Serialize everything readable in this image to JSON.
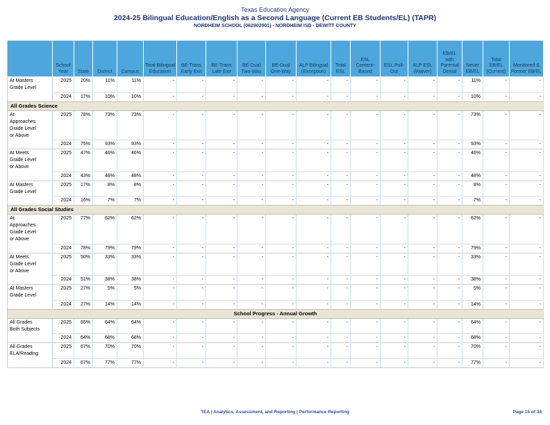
{
  "page": {
    "title": "Texas Education Agency",
    "subtitle": "2024-25 Bilingual Education/English as a Second Language (Current EB Students/EL) (TAPR)",
    "campus_line": "NORDHEIM SCHOOL (062902001) - NORDHEIM ISD - DEWITT COUNTY",
    "footer_left": "TEA | Analytics, Assessment, and Reporting | Performance Reporting",
    "footer_right": "Page 15 of 34"
  },
  "colors": {
    "header_bg": "#4da7dc",
    "header_text": "#15365f",
    "section_bg": "#e8e4d6",
    "title_text": "#1f3470",
    "footer_text": "#2b4aa5"
  },
  "table": {
    "columns": [
      "",
      "School Year",
      "State",
      "District",
      "Campus",
      "Total Bilingual Education",
      "BE-Trans Early Exit",
      "BE-Trans Late Exit",
      "BE-Dual Two-Way",
      "BE-Dual One-Way",
      "ALP Bilingual (Exception)",
      "Total ESL",
      "ESL Content-Based",
      "ESL Pull-Out",
      "ALP ESL (Waiver)",
      "EB/EL with Parental Denial",
      "Never EB/EL",
      "Total EB/EL (Current)",
      "Monitored & Former EB/EL"
    ],
    "sections": [
      {
        "header": null,
        "align": null,
        "groups": [
          {
            "label": "At Masters Grade Level",
            "rows": [
              [
                "2025",
                "20%",
                "11%",
                "11%",
                "-",
                "-",
                "-",
                "-",
                "-",
                "-",
                "-",
                "-",
                "-",
                "-",
                "-",
                "11%",
                "-",
                "-"
              ],
              [
                "2024",
                "17%",
                "10%",
                "10%",
                "-",
                "-",
                "-",
                "-",
                "-",
                "-",
                "-",
                "-",
                "-",
                "-",
                "-",
                "10%",
                "-",
                "-"
              ]
            ]
          }
        ]
      },
      {
        "header": "All Grades Science",
        "align": "left",
        "groups": [
          {
            "label": "At Approaches Grade Level or Above",
            "rows": [
              [
                "2025",
                "78%",
                "73%",
                "73%",
                "-",
                "-",
                "-",
                "-",
                "-",
                "-",
                "-",
                "-",
                "-",
                "-",
                "-",
                "73%",
                "-",
                "-"
              ],
              [
                "2024",
                "75%",
                "93%",
                "93%",
                "-",
                "-",
                "-",
                "-",
                "-",
                "-",
                "-",
                "-",
                "-",
                "-",
                "-",
                "93%",
                "-",
                "-"
              ]
            ]
          },
          {
            "label": "At Meets Grade Level or Above",
            "rows": [
              [
                "2025",
                "47%",
                "46%",
                "46%",
                "-",
                "-",
                "-",
                "-",
                "-",
                "-",
                "-",
                "-",
                "-",
                "-",
                "-",
                "46%",
                "-",
                "-"
              ],
              [
                "2024",
                "43%",
                "48%",
                "48%",
                "-",
                "-",
                "-",
                "-",
                "-",
                "-",
                "-",
                "-",
                "-",
                "-",
                "-",
                "48%",
                "-",
                "-"
              ]
            ]
          },
          {
            "label": "At Masters Grade Level",
            "rows": [
              [
                "2025",
                "17%",
                "8%",
                "8%",
                "-",
                "-",
                "-",
                "-",
                "-",
                "-",
                "-",
                "-",
                "-",
                "-",
                "-",
                "8%",
                "-",
                "-"
              ],
              [
                "2024",
                "16%",
                "7%",
                "7%",
                "-",
                "-",
                "-",
                "-",
                "-",
                "-",
                "-",
                "-",
                "-",
                "-",
                "-",
                "7%",
                "-",
                "-"
              ]
            ]
          }
        ]
      },
      {
        "header": "All Grades Social Studies",
        "align": "left",
        "groups": [
          {
            "label": "At Approaches Grade Level or Above",
            "rows": [
              [
                "2025",
                "77%",
                "62%",
                "62%",
                "-",
                "-",
                "-",
                "-",
                "-",
                "-",
                "-",
                "-",
                "-",
                "-",
                "-",
                "62%",
                "-",
                "-"
              ],
              [
                "2024",
                "78%",
                "79%",
                "79%",
                "-",
                "-",
                "-",
                "-",
                "-",
                "-",
                "-",
                "-",
                "-",
                "-",
                "-",
                "79%",
                "-",
                "-"
              ]
            ]
          },
          {
            "label": "At Meets Grade Level or Above",
            "rows": [
              [
                "2025",
                "50%",
                "33%",
                "33%",
                "-",
                "-",
                "-",
                "-",
                "-",
                "-",
                "-",
                "-",
                "-",
                "-",
                "-",
                "33%",
                "-",
                "-"
              ],
              [
                "2024",
                "51%",
                "38%",
                "38%",
                "-",
                "-",
                "-",
                "-",
                "-",
                "-",
                "-",
                "-",
                "-",
                "-",
                "-",
                "38%",
                "-",
                "-"
              ]
            ]
          },
          {
            "label": "At Masters Grade Level",
            "rows": [
              [
                "2025",
                "27%",
                "5%",
                "5%",
                "-",
                "-",
                "-",
                "-",
                "-",
                "-",
                "-",
                "-",
                "-",
                "-",
                "-",
                "5%",
                "-",
                "-"
              ],
              [
                "2024",
                "27%",
                "14%",
                "14%",
                "-",
                "-",
                "-",
                "-",
                "-",
                "-",
                "-",
                "-",
                "-",
                "-",
                "-",
                "14%",
                "-",
                "-"
              ]
            ]
          }
        ]
      },
      {
        "header": "School Progress - Annual Growth",
        "align": "center",
        "groups": [
          {
            "label": "All Grades Both Subjects",
            "rows": [
              [
                "2025",
                "65%",
                "64%",
                "64%",
                "-",
                "-",
                "-",
                "-",
                "-",
                "-",
                "-",
                "-",
                "-",
                "-",
                "-",
                "64%",
                "-",
                "-"
              ],
              [
                "2024",
                "64%",
                "68%",
                "68%",
                "-",
                "-",
                "-",
                "-",
                "-",
                "-",
                "-",
                "-",
                "-",
                "-",
                "-",
                "68%",
                "-",
                "-"
              ]
            ]
          },
          {
            "label": "All Grades ELA/Reading",
            "rows": [
              [
                "2025",
                "67%",
                "70%",
                "70%",
                "-",
                "-",
                "-",
                "-",
                "-",
                "-",
                "-",
                "-",
                "-",
                "-",
                "-",
                "70%",
                "-",
                "-"
              ],
              [
                "2024",
                "67%",
                "77%",
                "77%",
                "-",
                "-",
                "-",
                "-",
                "-",
                "-",
                "-",
                "-",
                "-",
                "-",
                "-",
                "77%",
                "-",
                "-"
              ]
            ]
          }
        ]
      }
    ]
  }
}
